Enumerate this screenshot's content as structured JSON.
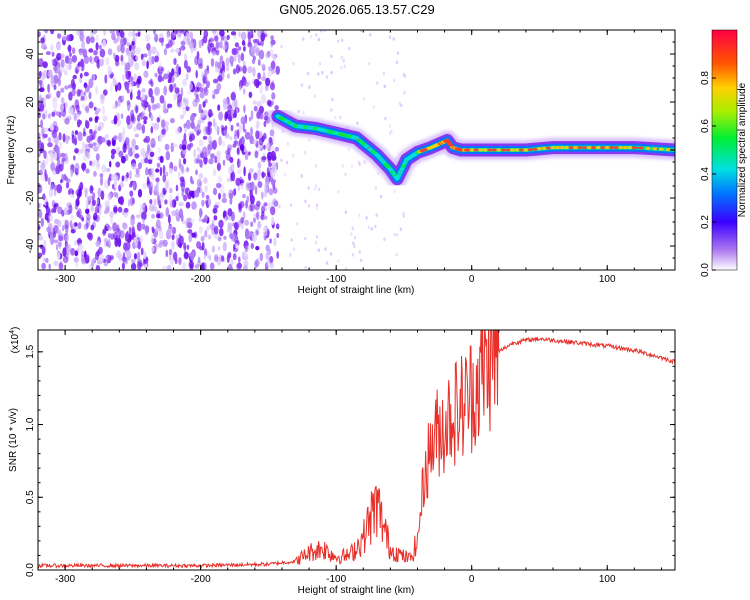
{
  "title": "GN05.2026.065.13.57.C29",
  "chart_data": [
    {
      "type": "heatmap",
      "name": "spectrogram",
      "xlabel": "Height of straight line (km)",
      "ylabel": "Frequency (Hz)",
      "xlim": [
        -320,
        150
      ],
      "ylim": [
        -50,
        50
      ],
      "xticks": [
        -300,
        -200,
        -100,
        0,
        100
      ],
      "xtick_labels": [
        "-300",
        "-200",
        "-100",
        "0",
        "100"
      ],
      "yticks": [
        40,
        20,
        0,
        -20,
        -40
      ],
      "ytick_labels": [
        "40",
        "20",
        "0",
        "-20",
        "-40"
      ],
      "noise_region_x": [
        -320,
        -143
      ],
      "signal_track": {
        "x": [
          -143,
          -130,
          -115,
          -100,
          -85,
          -70,
          -60,
          -55,
          -48,
          -40,
          -30,
          -22,
          -18,
          -14,
          -8,
          0,
          20,
          40,
          60,
          80,
          100,
          120,
          150
        ],
        "y": [
          14,
          10,
          9,
          7,
          5,
          -2,
          -8,
          -12,
          -4,
          -1,
          1,
          3,
          4,
          1,
          0,
          0,
          0,
          0,
          1,
          1,
          1,
          1,
          0
        ]
      },
      "colorbar": {
        "label": "Normalized spectral amplitude",
        "range": [
          0.0,
          1.0
        ],
        "ticks": [
          0.0,
          0.2,
          0.4,
          0.6,
          0.8
        ],
        "tick_labels": [
          "0.0",
          "0.2",
          "0.4",
          "0.6",
          "0.8"
        ]
      }
    },
    {
      "type": "line",
      "name": "snr",
      "xlabel": "Height of straight line (km)",
      "ylabel": "SNR (10 * v/v)",
      "y_multiplier": "(x10",
      "y_multiplier_exp": "4",
      "y_multiplier_close": ")",
      "xlim": [
        -320,
        150
      ],
      "ylim": [
        0.0,
        1.65
      ],
      "xticks": [
        -300,
        -200,
        -100,
        0,
        100
      ],
      "xtick_labels": [
        "-300",
        "-200",
        "-100",
        "0",
        "100"
      ],
      "yticks": [
        0.0,
        0.5,
        1.0,
        1.5
      ],
      "ytick_labels": [
        "0.0",
        "0.5",
        "1.0",
        "1.5"
      ],
      "color": "#e8302a",
      "series": {
        "x": [
          -320,
          -250,
          -200,
          -150,
          -130,
          -120,
          -110,
          -100,
          -90,
          -80,
          -75,
          -70,
          -65,
          -60,
          -55,
          -50,
          -45,
          -40,
          -35,
          -30,
          -25,
          -20,
          -15,
          -10,
          -5,
          0,
          5,
          10,
          20,
          30,
          40,
          50,
          60,
          80,
          100,
          120,
          140,
          150
        ],
        "y": [
          0.03,
          0.03,
          0.03,
          0.04,
          0.06,
          0.12,
          0.15,
          0.09,
          0.1,
          0.22,
          0.35,
          0.45,
          0.3,
          0.14,
          0.12,
          0.09,
          0.08,
          0.2,
          0.65,
          0.85,
          0.95,
          1.0,
          1.08,
          1.1,
          1.15,
          1.22,
          1.3,
          1.4,
          1.5,
          1.56,
          1.58,
          1.59,
          1.58,
          1.56,
          1.54,
          1.51,
          1.46,
          1.43
        ]
      }
    }
  ]
}
